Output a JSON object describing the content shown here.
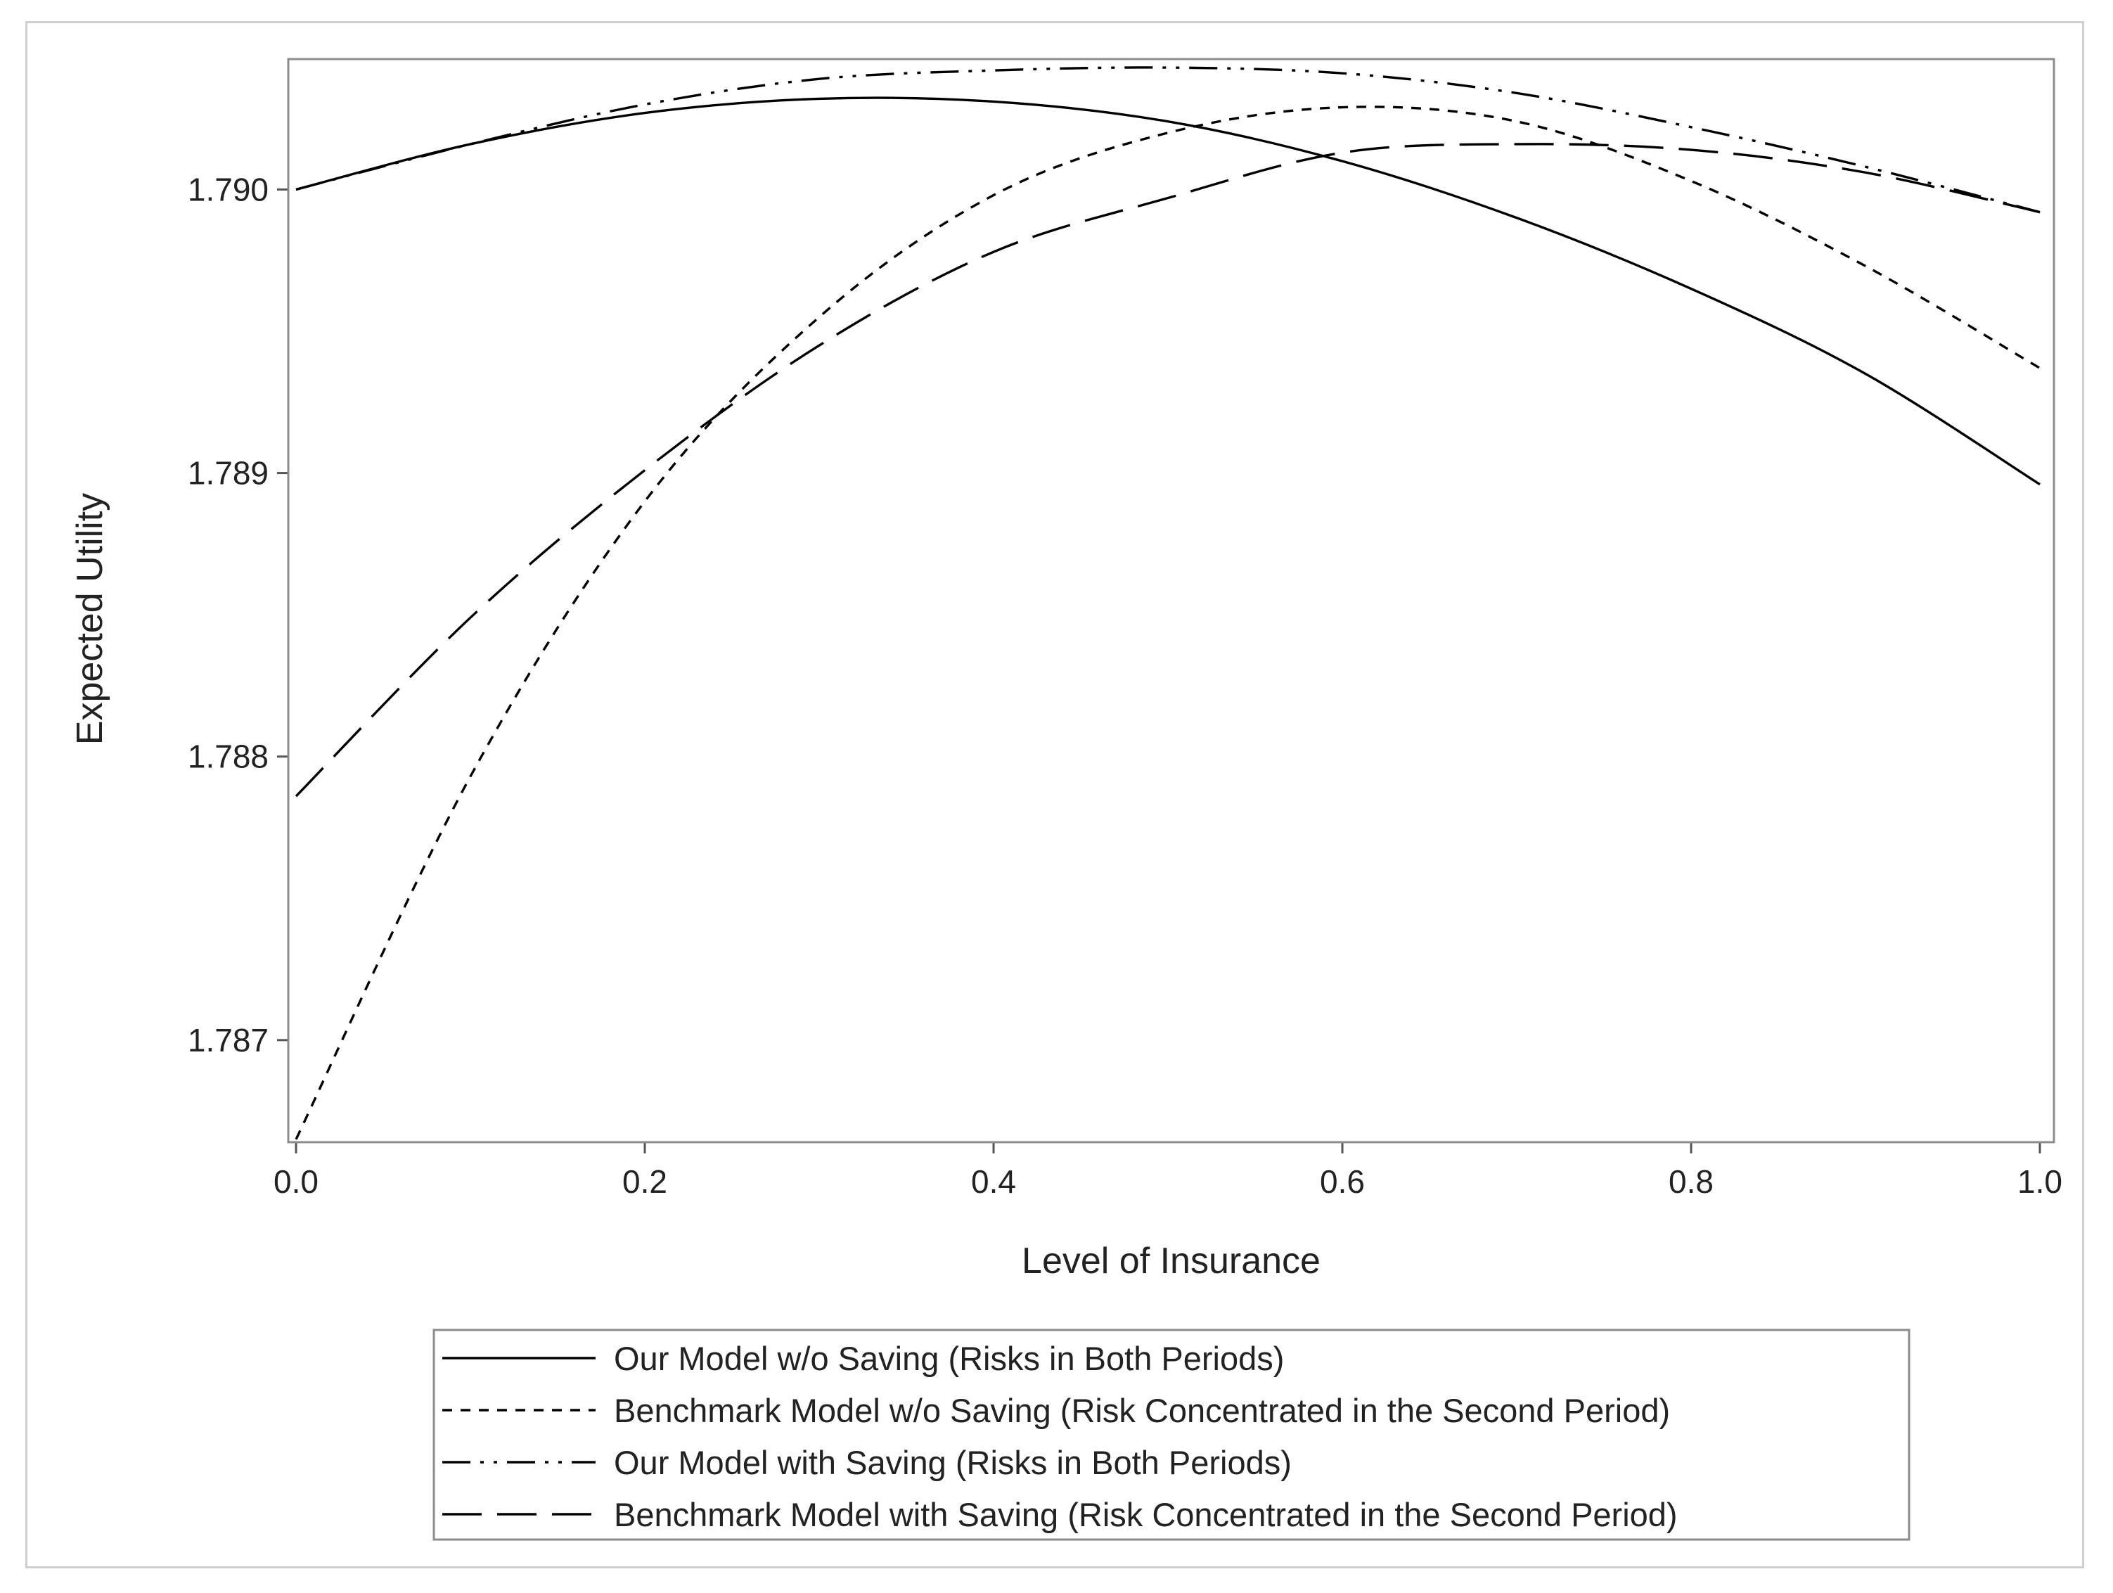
{
  "chart_data": {
    "type": "line",
    "title": "",
    "xlabel": "Level of Insurance",
    "ylabel": "Expected Utility",
    "xlim": [
      0.0,
      1.0
    ],
    "ylim": [
      1.78664,
      1.79046
    ],
    "xticks": [
      0.0,
      0.2,
      0.4,
      0.6,
      0.8,
      1.0
    ],
    "xtick_labels": [
      "0.0",
      "0.2",
      "0.4",
      "0.6",
      "0.8",
      "1.0"
    ],
    "yticks": [
      1.787,
      1.788,
      1.789,
      1.79
    ],
    "ytick_labels": [
      "1.787",
      "1.788",
      "1.789",
      "1.790"
    ],
    "grid": false,
    "legend_position": "bottom",
    "x": [
      0.0,
      0.1,
      0.2,
      0.3,
      0.4,
      0.5,
      0.6,
      0.7,
      0.8,
      0.9,
      1.0
    ],
    "series": [
      {
        "name": "Our Model w/o Saving (Risks in Both Periods)",
        "line_style": "solid",
        "values": [
          1.79,
          1.79016,
          1.79027,
          1.79032,
          1.79031,
          1.79024,
          1.7901,
          1.7899,
          1.78965,
          1.78935,
          1.78896
        ]
      },
      {
        "name": "Benchmark Model w/o Saving (Risk Concentrated in the Second Period)",
        "line_style": "short-dash",
        "values": [
          1.78665,
          1.78793,
          1.7889,
          1.78955,
          1.78998,
          1.7902,
          1.79029,
          1.79024,
          1.79003,
          1.78973,
          1.78937
        ]
      },
      {
        "name": "Our Model with Saving (Risks in Both Periods)",
        "line_style": "dash-dot-dot",
        "values": [
          1.79,
          1.79016,
          1.7903,
          1.79039,
          1.79042,
          1.79043,
          1.79041,
          1.79034,
          1.79022,
          1.79008,
          1.78992
        ]
      },
      {
        "name": "Benchmark Model with Saving (Risk Concentrated in the Second Period)",
        "line_style": "long-dash",
        "values": [
          1.78786,
          1.78849,
          1.78901,
          1.78945,
          1.78978,
          1.78997,
          1.79013,
          1.79016,
          1.79014,
          1.79006,
          1.78992
        ]
      }
    ]
  }
}
